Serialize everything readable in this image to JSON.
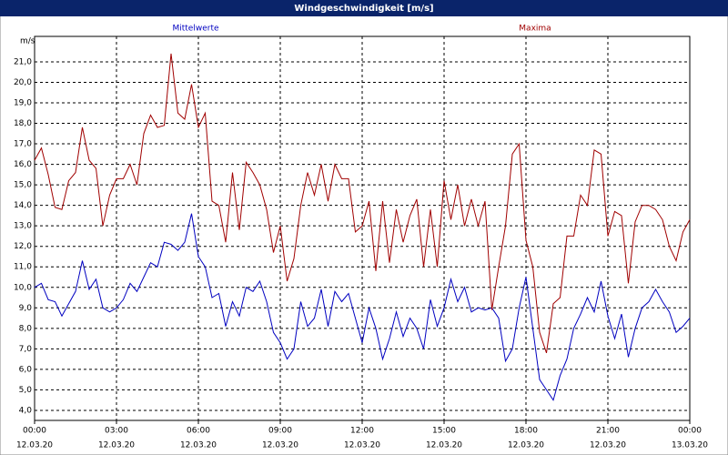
{
  "chart_data": {
    "type": "line",
    "title": "Windgeschwindigkeit [m/s]",
    "y_label": "m/s",
    "x": [
      0,
      0.25,
      0.5,
      0.75,
      1,
      1.25,
      1.5,
      1.75,
      2,
      2.25,
      2.5,
      2.75,
      3,
      3.25,
      3.5,
      3.75,
      4,
      4.25,
      4.5,
      4.75,
      5,
      5.25,
      5.5,
      5.75,
      6,
      6.25,
      6.5,
      6.75,
      7,
      7.25,
      7.5,
      7.75,
      8,
      8.25,
      8.5,
      8.75,
      9,
      9.25,
      9.5,
      9.75,
      10,
      10.25,
      10.5,
      10.75,
      11,
      11.25,
      11.5,
      11.75,
      12,
      12.25,
      12.5,
      12.75,
      13,
      13.25,
      13.5,
      13.75,
      14,
      14.25,
      14.5,
      14.75,
      15,
      15.25,
      15.5,
      15.75,
      16,
      16.25,
      16.5,
      16.75,
      17,
      17.25,
      17.5,
      17.75,
      18,
      18.25,
      18.5,
      18.75,
      19,
      19.25,
      19.5,
      19.75,
      20,
      20.25,
      20.5,
      20.75,
      21,
      21.25,
      21.5,
      21.75,
      22,
      22.25,
      22.5,
      22.75,
      23,
      23.25,
      23.5,
      23.75,
      24
    ],
    "series": [
      {
        "name": "Mittelwerte",
        "color": "#0000c0",
        "values": [
          10.0,
          10.2,
          9.4,
          9.3,
          8.6,
          9.2,
          9.8,
          11.3,
          9.9,
          10.4,
          9.0,
          8.8,
          9.0,
          9.4,
          10.2,
          9.8,
          10.5,
          11.2,
          11.0,
          12.2,
          12.1,
          11.8,
          12.2,
          13.6,
          11.5,
          11.0,
          9.5,
          9.7,
          8.1,
          9.3,
          8.6,
          10.0,
          9.8,
          10.3,
          9.3,
          7.8,
          7.3,
          6.5,
          7.0,
          9.3,
          8.1,
          8.5,
          9.9,
          8.1,
          9.8,
          9.3,
          9.7,
          8.5,
          7.3,
          9.0,
          8.0,
          6.5,
          7.5,
          8.8,
          7.6,
          8.5,
          8.0,
          7.0,
          9.4,
          8.1,
          9.0,
          10.4,
          9.3,
          10.0,
          8.8,
          9.0,
          8.9,
          9.0,
          8.5,
          6.4,
          7.0,
          9.0,
          10.5,
          8.0,
          5.5,
          5.0,
          4.5,
          5.7,
          6.5,
          8.0,
          8.7,
          9.5,
          8.8,
          10.3,
          8.6,
          7.5,
          8.7,
          6.6,
          8.0,
          9.0,
          9.3,
          9.9,
          9.3,
          8.8,
          7.8,
          8.1,
          8.5
        ]
      },
      {
        "name": "Maxima",
        "color": "#a00000",
        "values": [
          16.2,
          16.8,
          15.5,
          13.9,
          13.8,
          15.2,
          15.6,
          17.8,
          16.2,
          15.8,
          13.0,
          14.5,
          15.3,
          15.3,
          16.0,
          15.0,
          17.5,
          18.4,
          17.8,
          17.9,
          21.4,
          18.5,
          18.2,
          19.9,
          17.8,
          18.5,
          14.2,
          14.0,
          12.2,
          15.6,
          12.8,
          16.1,
          15.6,
          15.0,
          13.8,
          11.7,
          13.0,
          10.3,
          11.4,
          14.0,
          15.6,
          14.5,
          16.0,
          14.2,
          16.0,
          15.3,
          15.3,
          12.7,
          13.0,
          14.2,
          10.8,
          14.2,
          11.2,
          13.8,
          12.2,
          13.5,
          14.3,
          11.0,
          13.8,
          11.0,
          15.2,
          13.3,
          15.0,
          13.0,
          14.3,
          13.0,
          14.2,
          8.9,
          11.0,
          13.0,
          16.5,
          17.0,
          12.3,
          11.0,
          7.8,
          6.8,
          9.2,
          9.5,
          12.5,
          12.5,
          14.5,
          14.0,
          16.7,
          16.5,
          12.5,
          13.7,
          13.5,
          10.2,
          13.2,
          14.0,
          14.0,
          13.8,
          13.3,
          12.0,
          11.3,
          12.7,
          13.3
        ]
      }
    ],
    "xlim": [
      0,
      24
    ],
    "xticks": [
      {
        "value": 0,
        "label": "00:00"
      },
      {
        "value": 3,
        "label": "03:00"
      },
      {
        "value": 6,
        "label": "06:00"
      },
      {
        "value": 9,
        "label": "09:00"
      },
      {
        "value": 12,
        "label": "12:00"
      },
      {
        "value": 15,
        "label": "15:00"
      },
      {
        "value": 18,
        "label": "18:00"
      },
      {
        "value": 21,
        "label": "21:00"
      },
      {
        "value": 24,
        "label": "00:00"
      }
    ],
    "xtick_dates": [
      "12.03.20",
      "12.03.20",
      "12.03.20",
      "12.03.20",
      "12.03.20",
      "12.03.20",
      "12.03.20",
      "12.03.20",
      "13.03.20"
    ],
    "ylim": [
      3.51,
      22.24
    ],
    "yticks": [
      {
        "value": 4,
        "label": "4,0"
      },
      {
        "value": 5,
        "label": "5,0"
      },
      {
        "value": 6,
        "label": "6,0"
      },
      {
        "value": 7,
        "label": "7,0"
      },
      {
        "value": 8,
        "label": "8,0"
      },
      {
        "value": 9,
        "label": "9,0"
      },
      {
        "value": 10,
        "label": "10,0"
      },
      {
        "value": 11,
        "label": "11,0"
      },
      {
        "value": 12,
        "label": "12,0"
      },
      {
        "value": 13,
        "label": "13,0"
      },
      {
        "value": 14,
        "label": "14,0"
      },
      {
        "value": 15,
        "label": "15,0"
      },
      {
        "value": 16,
        "label": "16,0"
      },
      {
        "value": 17,
        "label": "17,0"
      },
      {
        "value": 18,
        "label": "18,0"
      },
      {
        "value": 19,
        "label": "19,0"
      },
      {
        "value": 20,
        "label": "20,0"
      },
      {
        "value": 21,
        "label": "21,0"
      }
    ],
    "grid": true
  }
}
